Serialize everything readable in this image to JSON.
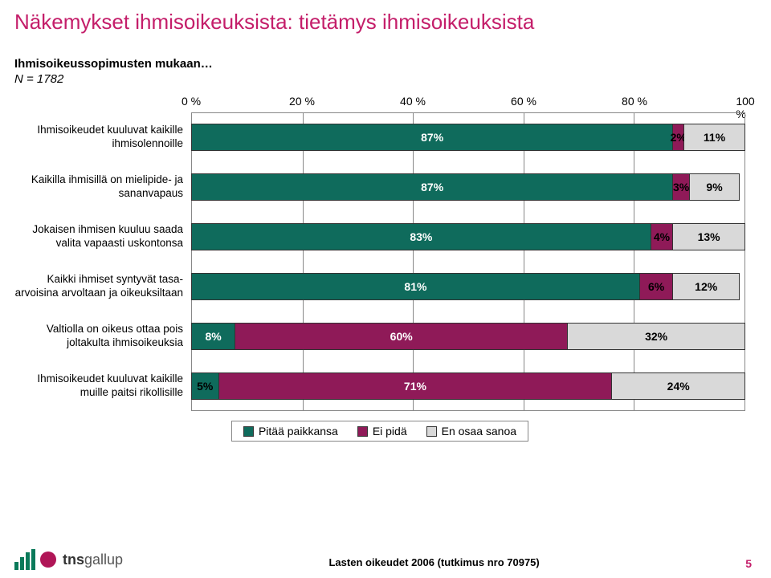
{
  "title": "Näkemykset ihmisoikeuksista: tietämys ihmisoikeuksista",
  "subhead": "Ihmisoikeussopimusten mukaan…",
  "n_line": "N = 1782",
  "axis": {
    "min": 0,
    "max": 100,
    "ticks": [
      0,
      20,
      40,
      60,
      80,
      100
    ],
    "suffix": " %"
  },
  "colors": {
    "series1": "#0f6b5c",
    "series2": "#8f1a58",
    "series3": "#d9d9d9",
    "series1_text": "#ffffff",
    "series2_text": "#ffffff",
    "series3_text": "#000000",
    "grid": "#888888",
    "title": "#c41e6a"
  },
  "legend": [
    "Pitää paikkansa",
    "Ei pidä",
    "En osaa sanoa"
  ],
  "rows": [
    {
      "label": "Ihmisoikeudet kuuluvat kaikille ihmisolennoille",
      "values": [
        87,
        2,
        11
      ]
    },
    {
      "label": "Kaikilla ihmisillä on mielipide- ja sananvapaus",
      "values": [
        87,
        3,
        9
      ]
    },
    {
      "label": "Jokaisen ihmisen kuuluu saada valita vapaasti uskontonsa",
      "values": [
        83,
        4,
        13
      ]
    },
    {
      "label": "Kaikki ihmiset syntyvät tasa-arvoisina arvoltaan ja oikeuksiltaan",
      "values": [
        81,
        6,
        12
      ]
    },
    {
      "label": "Valtiolla on oikeus ottaa pois joltakulta ihmisoikeuksia",
      "values": [
        8,
        60,
        32
      ]
    },
    {
      "label": "Ihmisoikeudet kuuluvat kaikille muille paitsi rikollisille",
      "values": [
        5,
        71,
        24
      ]
    }
  ],
  "footer_caption": "Lasten oikeudet 2006 (tutkimus nro 70975)",
  "page_number": "5",
  "logo_text_bold": "tns",
  "logo_text_light": "gallup"
}
